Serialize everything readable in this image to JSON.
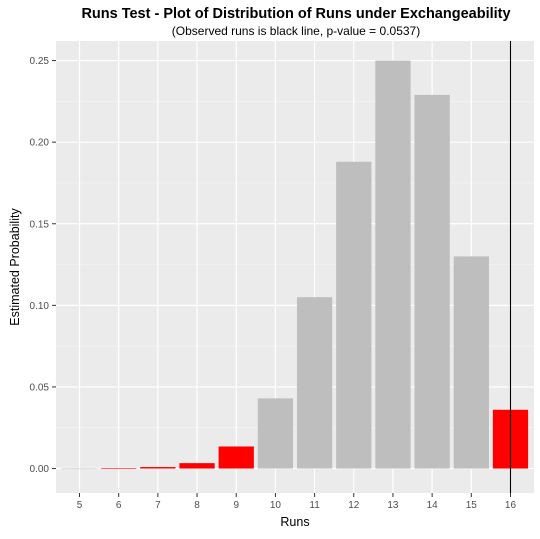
{
  "chart_data": {
    "type": "bar",
    "title": "Runs Test - Plot of Distribution of Runs under Exchangeability",
    "subtitle": "(Observed runs is black line, p-value = 0.0537)",
    "xlabel": "Runs",
    "ylabel": "Estimated Probability",
    "categories": [
      "5",
      "6",
      "7",
      "8",
      "9",
      "10",
      "11",
      "12",
      "13",
      "14",
      "15",
      "16"
    ],
    "values": [
      0.0,
      0.0003,
      0.0009,
      0.0033,
      0.0135,
      0.043,
      0.105,
      0.188,
      0.25,
      0.229,
      0.13,
      0.036
    ],
    "bar_fill": [
      "gray",
      "red",
      "red",
      "red",
      "red",
      "gray",
      "gray",
      "gray",
      "gray",
      "gray",
      "gray",
      "red"
    ],
    "ylim": [
      -0.015,
      0.262
    ],
    "yticks": [
      0.0,
      0.05,
      0.1,
      0.15,
      0.2,
      0.25
    ],
    "ytick_labels": [
      "0.00",
      "0.05",
      "0.10",
      "0.15",
      "0.20",
      "0.25"
    ],
    "observed_runs": 16,
    "p_value": 0.0537,
    "colors": {
      "panel_background": "#ebebeb",
      "grid_major": "#ffffff",
      "grid_minor": "#f5f5f5",
      "bar_gray": "#bebebe",
      "bar_red": "#ff0000",
      "observed_line": "#000000",
      "axis_text": "#4d4d4d",
      "title_text": "#000000"
    },
    "grid": true
  }
}
